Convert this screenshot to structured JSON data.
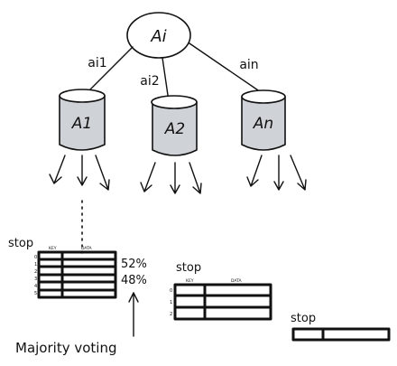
{
  "root": {
    "label": "Ai"
  },
  "edges": [
    {
      "label": "ai1"
    },
    {
      "label": "ai2"
    },
    {
      "label": "ain"
    }
  ],
  "nodes": [
    {
      "label": "A1"
    },
    {
      "label": "A2"
    },
    {
      "label": "An"
    }
  ],
  "tables": [
    {
      "title": "stop",
      "header_key": "KEY",
      "header_data": "DATA",
      "row_indexes": [
        "0",
        "1",
        "2",
        "3",
        "4",
        "5"
      ],
      "percentages": [
        "52%",
        "48%"
      ]
    },
    {
      "title": "stop",
      "header_key": "KEY",
      "header_data": "DATA",
      "row_indexes": [
        "0",
        "1",
        "2"
      ]
    },
    {
      "title": "stop"
    }
  ],
  "caption": "Majority voting",
  "colors": {
    "ink": "#111111",
    "drum_fill": "#cfd2d6"
  }
}
